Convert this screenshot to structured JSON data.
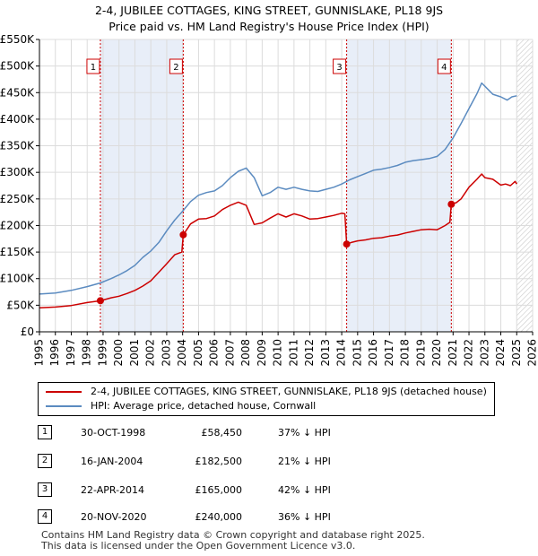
{
  "title_line1": "2-4, JUBILEE COTTAGES, KING STREET, GUNNISLAKE, PL18 9JS",
  "title_line2": "Price paid vs. HM Land Registry's House Price Index (HPI)",
  "chart_data": {
    "type": "line",
    "title": "2-4, JUBILEE COTTAGES, KING STREET, GUNNISLAKE, PL18 9JS — Price paid vs. HM Land Registry's House Price Index (HPI)",
    "xlim": [
      1995,
      2026
    ],
    "ylim": [
      0,
      550000
    ],
    "x_ticks": [
      1995,
      1996,
      1997,
      1998,
      1999,
      2000,
      2001,
      2002,
      2003,
      2004,
      2005,
      2006,
      2007,
      2008,
      2009,
      2010,
      2011,
      2012,
      2013,
      2014,
      2015,
      2016,
      2017,
      2018,
      2019,
      2020,
      2021,
      2022,
      2023,
      2024,
      2025,
      2026
    ],
    "y_ticks": [
      0,
      50000,
      100000,
      150000,
      200000,
      250000,
      300000,
      350000,
      400000,
      450000,
      500000,
      550000
    ],
    "y_tick_labels": [
      "£0",
      "£50K",
      "£100K",
      "£150K",
      "£200K",
      "£250K",
      "£300K",
      "£350K",
      "£400K",
      "£450K",
      "£500K",
      "£550K"
    ],
    "shaded_periods": [
      [
        1998.83,
        2004.04
      ],
      [
        2014.31,
        2020.89
      ]
    ],
    "hatched_from": 2025.0,
    "series": [
      {
        "name": "2-4, JUBILEE COTTAGES, KING STREET, GUNNISLAKE, PL18 9JS (detached house)",
        "color": "#cc0000",
        "x": [
          1995.0,
          1996.0,
          1997.0,
          1998.0,
          1998.83,
          1999.5,
          2000.0,
          2000.5,
          2001.0,
          2001.5,
          2002.0,
          2002.5,
          2003.0,
          2003.5,
          2003.95,
          2004.04,
          2004.5,
          2005.0,
          2005.5,
          2006.0,
          2006.5,
          2007.0,
          2007.5,
          2008.0,
          2008.5,
          2009.0,
          2009.5,
          2010.0,
          2010.5,
          2011.0,
          2011.5,
          2012.0,
          2012.5,
          2013.0,
          2013.5,
          2014.0,
          2014.2,
          2014.31,
          2014.6,
          2015.0,
          2015.5,
          2016.0,
          2016.5,
          2017.0,
          2017.5,
          2018.0,
          2018.5,
          2019.0,
          2019.5,
          2020.0,
          2020.5,
          2020.8,
          2020.89,
          2021.2,
          2021.5,
          2022.0,
          2022.5,
          2022.8,
          2023.0,
          2023.5,
          2024.0,
          2024.3,
          2024.6,
          2024.9,
          2025.0
        ],
        "y": [
          45000,
          46500,
          49500,
          55000,
          58450,
          64000,
          67000,
          72000,
          78000,
          86000,
          96000,
          112000,
          128000,
          145000,
          150000,
          182500,
          203000,
          212000,
          213000,
          218000,
          230000,
          238000,
          244000,
          238000,
          202000,
          205000,
          214000,
          222000,
          216000,
          222000,
          218000,
          212000,
          213000,
          216000,
          219000,
          223000,
          222000,
          165000,
          168000,
          171000,
          173000,
          176000,
          177000,
          180000,
          182000,
          186000,
          189000,
          192000,
          193000,
          192000,
          200000,
          206000,
          240000,
          243000,
          250000,
          272000,
          287000,
          297000,
          290000,
          287000,
          276000,
          278000,
          275000,
          283000,
          278000
        ]
      },
      {
        "name": "HPI: Average price, detached house, Cornwall",
        "color": "#5b8bc0",
        "x": [
          1995.0,
          1996.0,
          1997.0,
          1998.0,
          1998.83,
          1999.5,
          2000.0,
          2000.5,
          2001.0,
          2001.5,
          2002.0,
          2002.5,
          2003.0,
          2003.5,
          2004.0,
          2004.5,
          2005.0,
          2005.5,
          2006.0,
          2006.5,
          2007.0,
          2007.5,
          2008.0,
          2008.5,
          2009.0,
          2009.5,
          2010.0,
          2010.5,
          2011.0,
          2011.5,
          2012.0,
          2012.5,
          2013.0,
          2013.5,
          2014.0,
          2014.5,
          2015.0,
          2015.5,
          2016.0,
          2016.5,
          2017.0,
          2017.5,
          2018.0,
          2018.5,
          2019.0,
          2019.5,
          2020.0,
          2020.5,
          2021.0,
          2021.5,
          2022.0,
          2022.5,
          2022.8,
          2023.0,
          2023.5,
          2024.0,
          2024.4,
          2024.7,
          2025.0
        ],
        "y": [
          71000,
          73000,
          78000,
          85000,
          92000,
          100000,
          107000,
          115000,
          125000,
          140000,
          152000,
          168000,
          190000,
          210000,
          227000,
          245000,
          257000,
          262000,
          265000,
          275000,
          290000,
          302000,
          308000,
          290000,
          256000,
          262000,
          272000,
          268000,
          272000,
          268000,
          265000,
          264000,
          268000,
          272000,
          278000,
          286000,
          292000,
          298000,
          304000,
          306000,
          309000,
          313000,
          319000,
          322000,
          324000,
          326000,
          330000,
          343000,
          365000,
          392000,
          420000,
          448000,
          468000,
          462000,
          447000,
          442000,
          436000,
          442000,
          444000
        ]
      }
    ],
    "sales": [
      {
        "label": "1",
        "x": 1998.83,
        "y": 58450
      },
      {
        "label": "2",
        "x": 2004.04,
        "y": 182500
      },
      {
        "label": "3",
        "x": 2014.31,
        "y": 165000
      },
      {
        "label": "4",
        "x": 2020.89,
        "y": 240000
      }
    ]
  },
  "legend": {
    "property_label": "2-4, JUBILEE COTTAGES, KING STREET, GUNNISLAKE, PL18 9JS (detached house)",
    "hpi_label": "HPI: Average price, detached house, Cornwall",
    "property_color": "#cc0000",
    "hpi_color": "#5b8bc0"
  },
  "sales_table": [
    {
      "num": "1",
      "date": "30-OCT-1998",
      "price": "£58,450",
      "hpi": "37% ↓ HPI"
    },
    {
      "num": "2",
      "date": "16-JAN-2004",
      "price": "£182,500",
      "hpi": "21% ↓ HPI"
    },
    {
      "num": "3",
      "date": "22-APR-2014",
      "price": "£165,000",
      "hpi": "42% ↓ HPI"
    },
    {
      "num": "4",
      "date": "20-NOV-2020",
      "price": "£240,000",
      "hpi": "36% ↓ HPI"
    }
  ],
  "footer_line1": "Contains HM Land Registry data © Crown copyright and database right 2025.",
  "footer_line2": "This data is licensed under the Open Government Licence v3.0."
}
